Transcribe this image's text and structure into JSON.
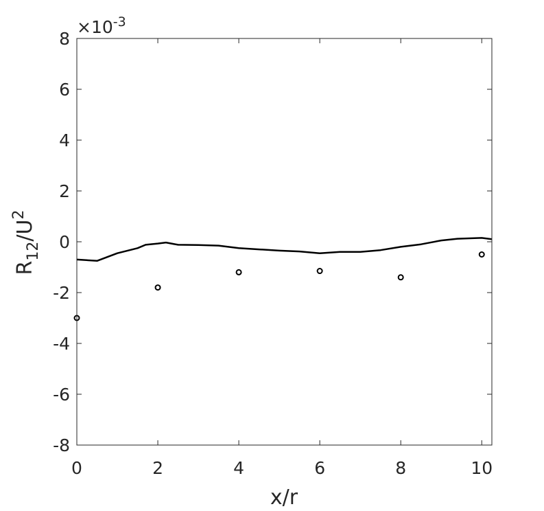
{
  "chart_data": {
    "type": "line",
    "xlabel": "x/r",
    "ylabel_parts": {
      "base": "R",
      "sub": "12",
      "slash": "/U",
      "sup": "2"
    },
    "exponent_label": {
      "prefix": "×10",
      "power": "-3"
    },
    "xlim": [
      0,
      10.25
    ],
    "ylim": [
      -8,
      8
    ],
    "xticks": [
      0,
      2,
      4,
      6,
      8,
      10
    ],
    "yticks": [
      -8,
      -6,
      -4,
      -2,
      0,
      2,
      4,
      6,
      8
    ],
    "xtick_labels": [
      "0",
      "2",
      "4",
      "6",
      "8",
      "10"
    ],
    "ytick_labels": [
      "-8",
      "-6",
      "-4",
      "-2",
      "0",
      "2",
      "4",
      "6",
      "8"
    ],
    "grid": false,
    "y_scale_factor": 0.001,
    "series": [
      {
        "style": "solid-line",
        "color": "#000000",
        "x": [
          0,
          0.5,
          1.0,
          1.5,
          1.7,
          2.0,
          2.2,
          2.5,
          3.0,
          3.5,
          4.0,
          4.5,
          5.0,
          5.5,
          6.0,
          6.5,
          7.0,
          7.5,
          8.0,
          8.5,
          9.0,
          9.4,
          10.0,
          10.25
        ],
        "y": [
          -0.7,
          -0.75,
          -0.45,
          -0.25,
          -0.12,
          -0.07,
          -0.03,
          -0.12,
          -0.13,
          -0.15,
          -0.25,
          -0.3,
          -0.35,
          -0.38,
          -0.45,
          -0.4,
          -0.4,
          -0.33,
          -0.2,
          -0.1,
          0.05,
          0.12,
          0.15,
          0.1
        ]
      },
      {
        "style": "open-circle-markers",
        "color": "#000000",
        "x": [
          0,
          2,
          4,
          6,
          8,
          10
        ],
        "y": [
          -3.0,
          -1.8,
          -1.2,
          -1.15,
          -1.4,
          -0.5
        ]
      }
    ]
  }
}
